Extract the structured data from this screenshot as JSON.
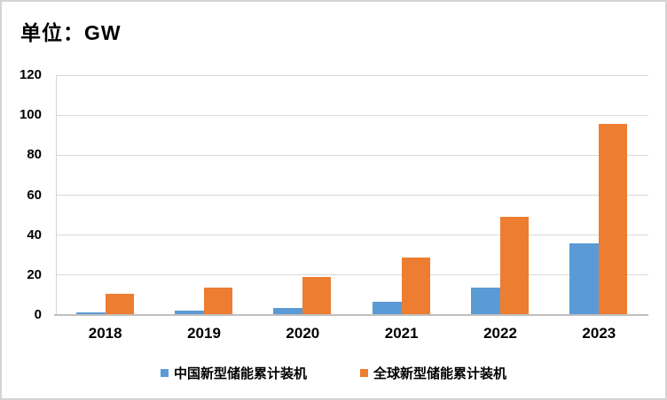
{
  "title": "单位：GW",
  "chart_data": {
    "type": "bar",
    "categories": [
      "2018",
      "2019",
      "2020",
      "2021",
      "2022",
      "2023"
    ],
    "series": [
      {
        "name": "中国新型储能累计装机",
        "color": "#5B9BD5",
        "values": [
          1.1,
          1.9,
          3.3,
          6.3,
          13.4,
          35.3
        ]
      },
      {
        "name": "全球新型储能累计装机",
        "color": "#ED7D31",
        "values": [
          10.0,
          13.4,
          18.5,
          28.4,
          48.8,
          95.3
        ]
      }
    ],
    "xlabel": "",
    "ylabel": "",
    "ylim": [
      0,
      120
    ],
    "yticks": [
      0,
      20,
      40,
      60,
      80,
      100,
      120
    ],
    "grid": true,
    "legend_position": "bottom",
    "title": "单位：GW"
  },
  "colors": {
    "gridline": "#D9D9D9",
    "axis_line": "#BFBFBF",
    "frame_border": "#D4D4D4",
    "text": "#000000",
    "background": "#FFFFFF"
  }
}
